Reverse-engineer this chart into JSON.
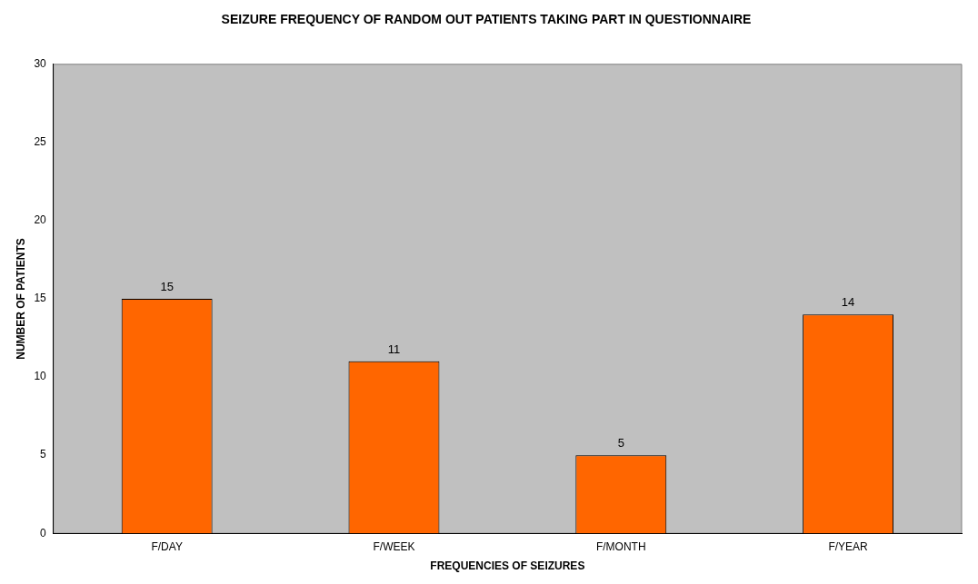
{
  "chart_data": {
    "type": "bar",
    "title": "SEIZURE FREQUENCY OF RANDOM OUT PATIENTS TAKING PART IN QUESTIONNAIRE",
    "xlabel": "FREQUENCIES OF SEIZURES",
    "ylabel": "NUMBER OF PATIENTS",
    "categories": [
      "F/DAY",
      "F/WEEK",
      "F/MONTH",
      "F/YEAR"
    ],
    "values": [
      15,
      11,
      5,
      14
    ],
    "color": "#ff6600",
    "ylim": [
      0,
      30
    ],
    "yticks": [
      0,
      5,
      10,
      15,
      20,
      25,
      30
    ],
    "grid": false,
    "legend": false,
    "data_labels": true
  }
}
